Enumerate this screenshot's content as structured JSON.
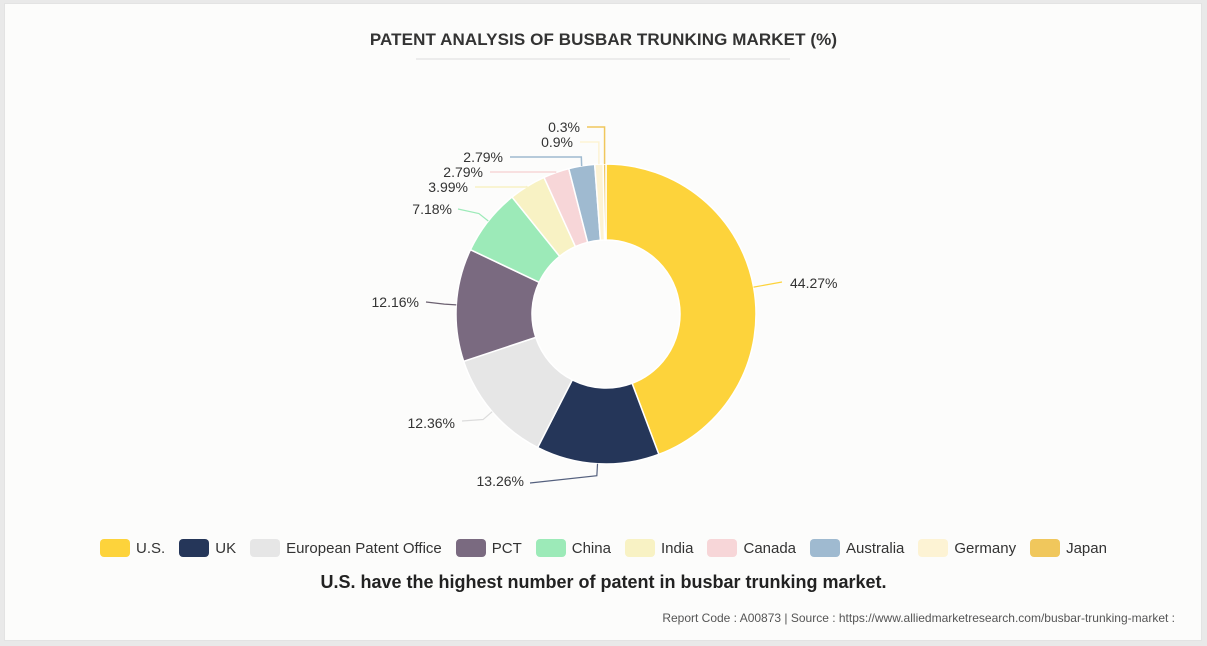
{
  "colors": {
    "U.S.": "#fdd33b",
    "UK": "#253659",
    "European Patent Office": "#e6e6e6",
    "PCT": "#7a6a80",
    "China": "#9ceab8",
    "India": "#f8f2c4",
    "Canada": "#f7d6d8",
    "Australia": "#9fbad0",
    "Germany": "#fdf3d4",
    "Japan": "#f0c75c"
  },
  "chart_data": {
    "type": "pie",
    "donut": true,
    "title": "PATENT ANALYSIS OF BUSBAR TRUNKING MARKET (%)",
    "categories": [
      "U.S.",
      "UK",
      "European Patent Office",
      "PCT",
      "China",
      "India",
      "Canada",
      "Australia",
      "Germany",
      "Japan"
    ],
    "values": [
      44.27,
      13.26,
      12.36,
      12.16,
      7.18,
      3.99,
      2.79,
      2.79,
      0.9,
      0.3
    ],
    "data_labels": [
      "44.27%",
      "13.26%",
      "12.36%",
      "12.16%",
      "7.18%",
      "3.99%",
      "2.79%",
      "2.79%",
      "0.9%",
      "0.3%"
    ],
    "legend_position": "bottom"
  },
  "footnote": "U.S. have the highest number of patent in busbar trunking market.",
  "source": "Report Code : A00873  |  Source : https://www.alliedmarketresearch.com/busbar-trunking-market :"
}
